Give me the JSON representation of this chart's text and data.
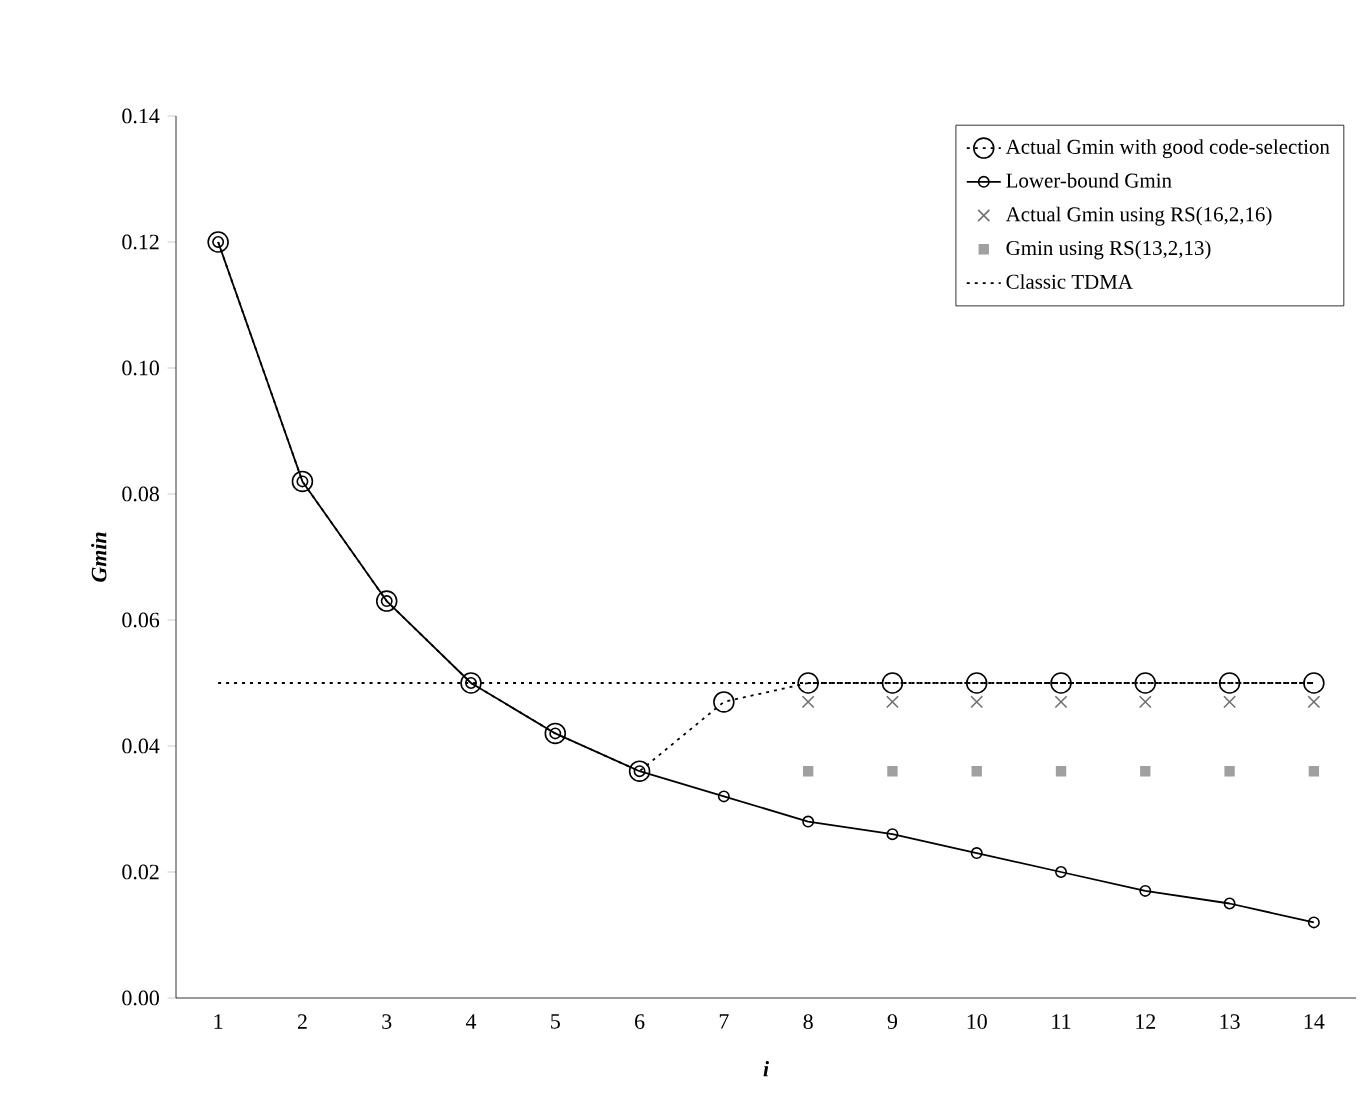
{
  "chart_data": {
    "type": "line",
    "xlabel": "*i*",
    "ylabel": "*Gmin*",
    "categories": [
      "1",
      "2",
      "3",
      "4",
      "5",
      "6",
      "7",
      "8",
      "9",
      "10",
      "11",
      "12",
      "13",
      "14"
    ],
    "ylim": [
      0,
      0.14
    ],
    "yticks": [
      {
        "value": 0,
        "label": "0.00"
      },
      {
        "value": 0.02,
        "label": "0.02"
      },
      {
        "value": 0.04,
        "label": "0.04"
      },
      {
        "value": 0.06,
        "label": "0.06"
      },
      {
        "value": 0.08,
        "label": "0.08"
      },
      {
        "value": 0.1,
        "label": "0.10"
      },
      {
        "value": 0.12,
        "label": "0.12"
      },
      {
        "value": 0.14,
        "label": "0.14"
      }
    ],
    "grid": false,
    "legend": "top right",
    "series": [
      {
        "name": "Actual Gmin with good code-selection",
        "marker": "circle",
        "line_style": "dotted",
        "color": "#000000",
        "values": [
          0.12,
          0.082,
          0.063,
          0.05,
          0.042,
          0.036,
          0.047,
          0.05,
          0.05,
          0.05,
          0.05,
          0.05,
          0.05,
          0.05
        ]
      },
      {
        "name": "Lower-bound Gmin",
        "marker": "circle",
        "line_style": "solid",
        "color": "#000000",
        "values": [
          0.12,
          0.082,
          0.063,
          0.05,
          0.042,
          0.036,
          0.032,
          0.028,
          0.026,
          0.023,
          0.02,
          0.017,
          0.015,
          0.012
        ]
      },
      {
        "name": "Actual Gmin using RS(16,2,16)",
        "type": "scatter",
        "marker": "cross",
        "color": "#707070",
        "values": [
          null,
          null,
          null,
          null,
          null,
          null,
          null,
          0.047,
          0.047,
          0.047,
          0.047,
          0.047,
          0.047,
          0.047
        ]
      },
      {
        "name": "Gmin using RS(13,2,13)",
        "type": "scatter",
        "marker": "square",
        "color": "#a0a0a0",
        "values": [
          null,
          null,
          null,
          null,
          null,
          null,
          null,
          0.036,
          0.036,
          0.036,
          0.036,
          0.036,
          0.036,
          0.036
        ]
      },
      {
        "name": "Classic TDMA",
        "line_style": "dotted",
        "color": "#000000",
        "values": [
          0.05,
          0.05,
          0.05,
          0.05,
          0.05,
          0.05,
          0.05,
          0.05,
          0.05,
          0.05,
          0.05,
          0.05,
          0.05,
          0.05
        ]
      }
    ]
  }
}
